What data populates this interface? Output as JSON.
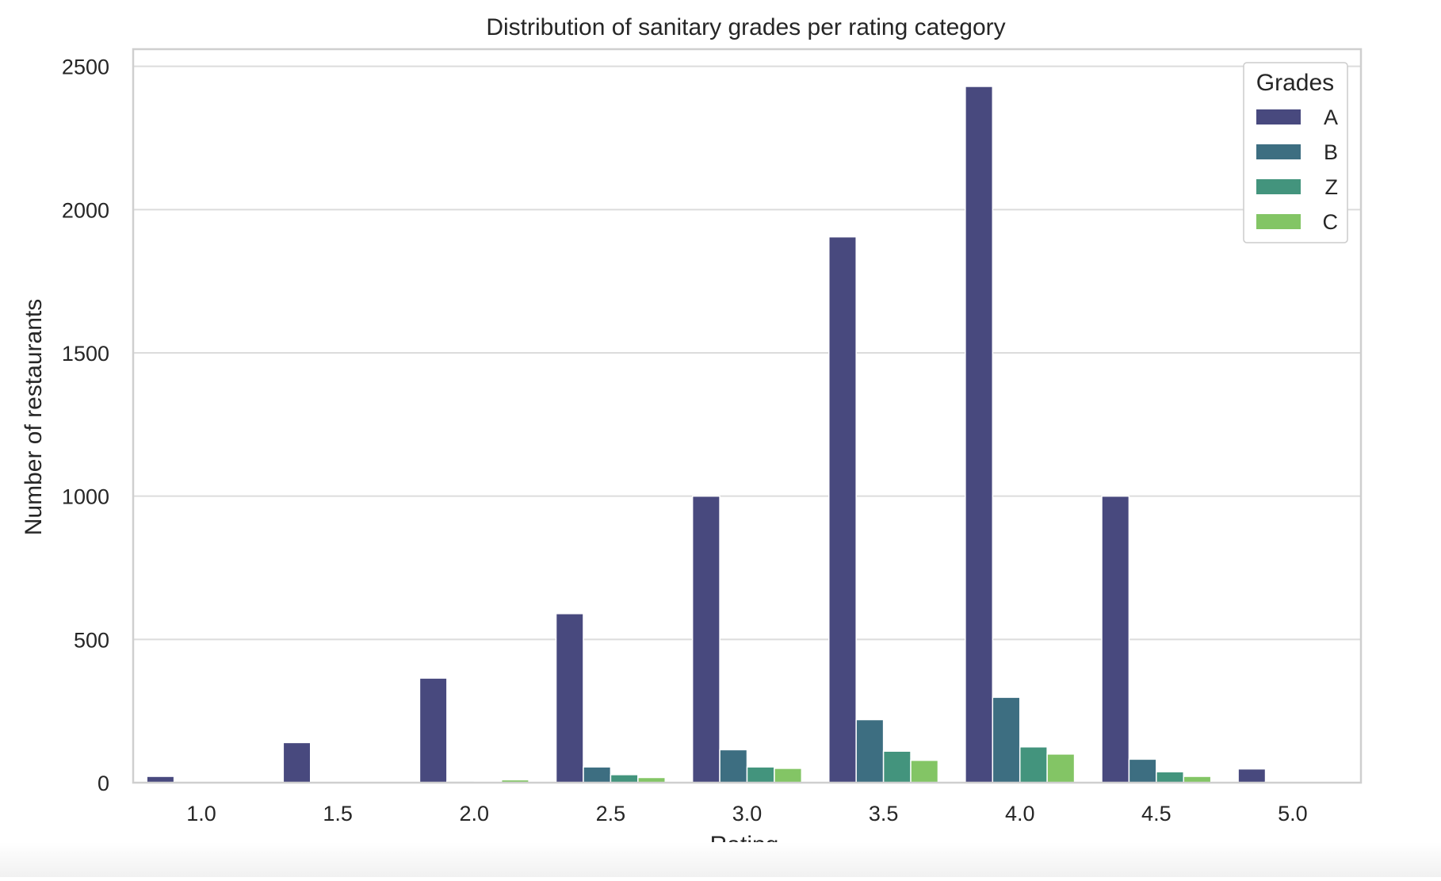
{
  "chart_data": {
    "type": "bar",
    "title": "Distribution of sanitary grades per rating category",
    "xlabel": "Rating",
    "ylabel": "Number of restaurants",
    "categories": [
      "1.0",
      "1.5",
      "2.0",
      "2.5",
      "3.0",
      "3.5",
      "4.0",
      "4.5",
      "5.0"
    ],
    "yticks": [
      0,
      500,
      1000,
      1500,
      2000,
      2500
    ],
    "ylim": [
      0,
      2560
    ],
    "grid": true,
    "legend": {
      "title": "Grades",
      "placement": "top-right"
    },
    "series": [
      {
        "name": "A",
        "color": "#48497e",
        "values": [
          22,
          140,
          365,
          590,
          1000,
          1905,
          2430,
          1000,
          48
        ]
      },
      {
        "name": "B",
        "color": "#3d6e81",
        "values": [
          2,
          3,
          5,
          55,
          115,
          220,
          298,
          82,
          3
        ]
      },
      {
        "name": "Z",
        "color": "#43947d",
        "values": [
          1,
          2,
          3,
          28,
          55,
          110,
          125,
          38,
          1
        ]
      },
      {
        "name": "C",
        "color": "#83c565",
        "values": [
          0,
          1,
          10,
          18,
          50,
          78,
          100,
          22,
          0
        ]
      }
    ]
  }
}
